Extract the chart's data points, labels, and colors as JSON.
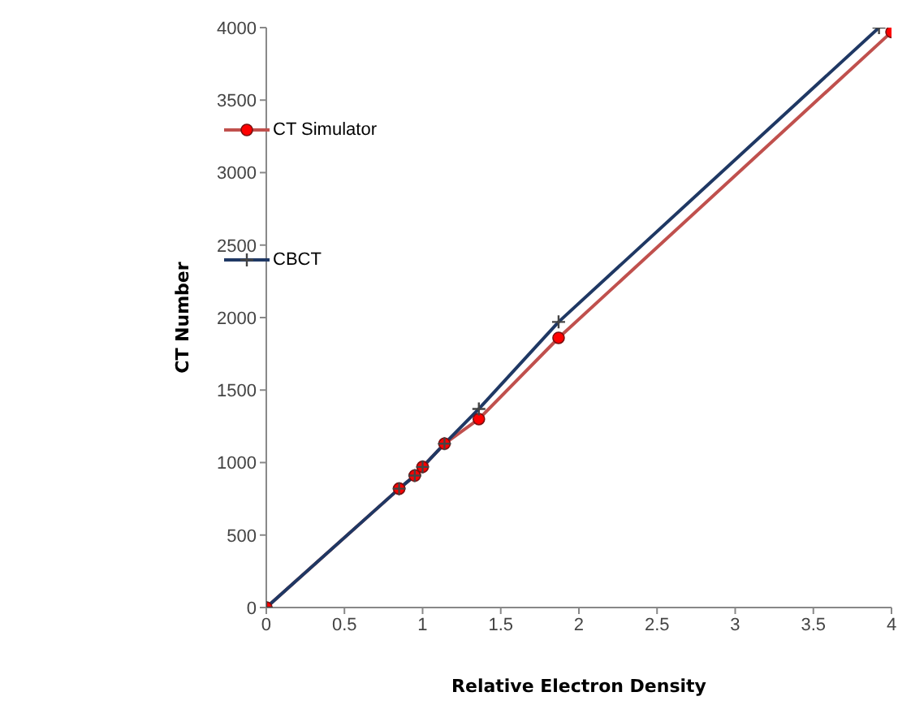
{
  "chart_data": {
    "type": "line",
    "xlabel": "Relative Electron Density",
    "ylabel": "CT Number",
    "xlim": [
      0,
      4
    ],
    "xticks": [
      0,
      0.5,
      1,
      1.5,
      2,
      2.5,
      3,
      3.5,
      4
    ],
    "ylim": [
      0,
      4000
    ],
    "yticks": [
      0,
      500,
      1000,
      1500,
      2000,
      2500,
      3000,
      3500,
      4000
    ],
    "grid": false,
    "legend": "top left",
    "line_style": "solid",
    "series": [
      {
        "name": "CT Simulator",
        "color": "#c0504d",
        "marker": "circle",
        "x": [
          0,
          0.85,
          0.95,
          1.0,
          1.14,
          1.36,
          1.87,
          4.0
        ],
        "values": [
          0,
          820,
          910,
          970,
          1130,
          1300,
          1860,
          3970
        ]
      },
      {
        "name": "CBCT",
        "color": "#1f3864",
        "marker": "cross",
        "x": [
          0,
          0.85,
          0.95,
          1.0,
          1.14,
          1.36,
          1.87,
          3.92
        ],
        "values": [
          0,
          820,
          910,
          970,
          1130,
          1370,
          1970,
          4000
        ]
      }
    ]
  }
}
